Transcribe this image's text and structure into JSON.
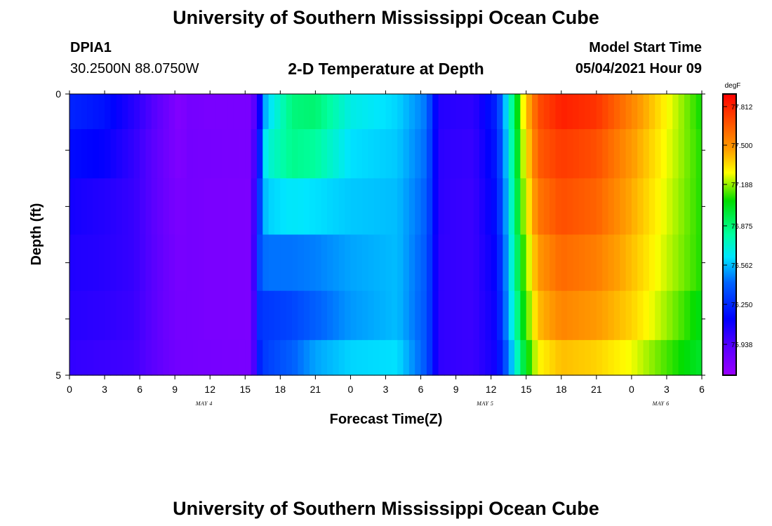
{
  "header": {
    "title": "University of Southern Mississippi Ocean Cube",
    "station_id": "DPIA1",
    "station_coords": "30.2500N  88.0750W",
    "plot_title": "2-D Temperature at Depth",
    "model_start_label": "Model Start Time",
    "model_start_value": "05/04/2021 Hour 09"
  },
  "footer": {
    "title": "University of Southern Mississippi Ocean Cube"
  },
  "chart_data": {
    "type": "heatmap",
    "title": "2-D Temperature at Depth",
    "xlabel": "Forecast Time(Z)",
    "ylabel": "Depth (ft)",
    "y_ticks": [
      "0",
      "5"
    ],
    "ylim": [
      0,
      5
    ],
    "x_ticks": [
      "0",
      "3",
      "6",
      "9",
      "12",
      "15",
      "18",
      "21",
      "0",
      "3",
      "6",
      "9",
      "12",
      "15",
      "18",
      "21",
      "0",
      "3",
      "6"
    ],
    "date_labels": [
      {
        "label": "MAY 4",
        "hour_index": 11.5
      },
      {
        "label": "MAY 5",
        "hour_index": 35.5
      },
      {
        "label": "MAY 6",
        "hour_index": 50.5
      }
    ],
    "xlim_hours": [
      0,
      54
    ],
    "depth_bins_ft": [
      0.25,
      1.0,
      2.0,
      3.0,
      4.0,
      4.75
    ],
    "colorbar": {
      "units": "degF",
      "tick_labels": [
        "77.812",
        "77.500",
        "77.188",
        "76.875",
        "76.562",
        "76.250",
        "75.938"
      ],
      "range": [
        75.6,
        77.95
      ]
    },
    "time_key_hours": [
      0,
      3,
      5.5,
      8.5,
      9.5,
      10,
      12,
      15.5,
      16.3,
      16.8,
      19,
      21,
      24,
      28,
      30.5,
      31.5,
      33,
      34.5,
      36.5,
      37.2,
      38,
      38.8,
      40,
      42,
      45,
      48,
      51,
      54
    ],
    "temperature_degF": [
      [
        76.18,
        76.12,
        75.97,
        75.75,
        75.67,
        75.74,
        75.72,
        75.72,
        76.08,
        76.55,
        76.84,
        76.86,
        76.64,
        76.56,
        76.4,
        75.98,
        75.96,
        75.95,
        76.18,
        76.52,
        76.9,
        77.32,
        77.72,
        77.86,
        77.8,
        77.56,
        77.3,
        77.06
      ],
      [
        76.1,
        76.06,
        75.94,
        75.74,
        75.69,
        75.74,
        75.73,
        75.72,
        76.2,
        76.66,
        76.81,
        76.78,
        76.58,
        76.54,
        76.38,
        75.96,
        75.94,
        75.93,
        76.15,
        76.48,
        76.86,
        77.26,
        77.68,
        77.78,
        77.72,
        77.5,
        77.28,
        77.08
      ],
      [
        76.02,
        75.98,
        75.93,
        75.75,
        75.71,
        75.74,
        75.72,
        75.71,
        76.3,
        76.55,
        76.6,
        76.58,
        76.54,
        76.52,
        76.36,
        75.96,
        75.93,
        75.92,
        76.12,
        76.44,
        76.82,
        77.2,
        77.6,
        77.72,
        77.66,
        77.46,
        77.26,
        77.08
      ],
      [
        75.99,
        75.97,
        75.93,
        75.76,
        75.72,
        75.74,
        75.72,
        75.71,
        76.34,
        76.4,
        76.4,
        76.42,
        76.48,
        76.52,
        76.34,
        75.95,
        75.93,
        75.92,
        76.08,
        76.4,
        76.78,
        77.12,
        77.5,
        77.64,
        77.58,
        77.42,
        77.24,
        77.08
      ],
      [
        75.97,
        75.95,
        75.92,
        75.76,
        75.73,
        75.74,
        75.72,
        75.71,
        76.25,
        76.24,
        76.28,
        76.36,
        76.46,
        76.52,
        76.33,
        75.95,
        75.93,
        75.92,
        76.06,
        76.38,
        76.72,
        77.05,
        77.42,
        77.56,
        77.5,
        77.38,
        77.2,
        77.02
      ],
      [
        75.94,
        75.92,
        75.9,
        75.77,
        75.74,
        75.74,
        75.73,
        75.72,
        76.2,
        76.26,
        76.36,
        76.48,
        76.56,
        76.58,
        76.33,
        75.95,
        75.93,
        75.92,
        76.04,
        76.3,
        76.62,
        76.95,
        77.3,
        77.42,
        77.38,
        77.28,
        77.12,
        76.98
      ]
    ],
    "grid": false
  }
}
